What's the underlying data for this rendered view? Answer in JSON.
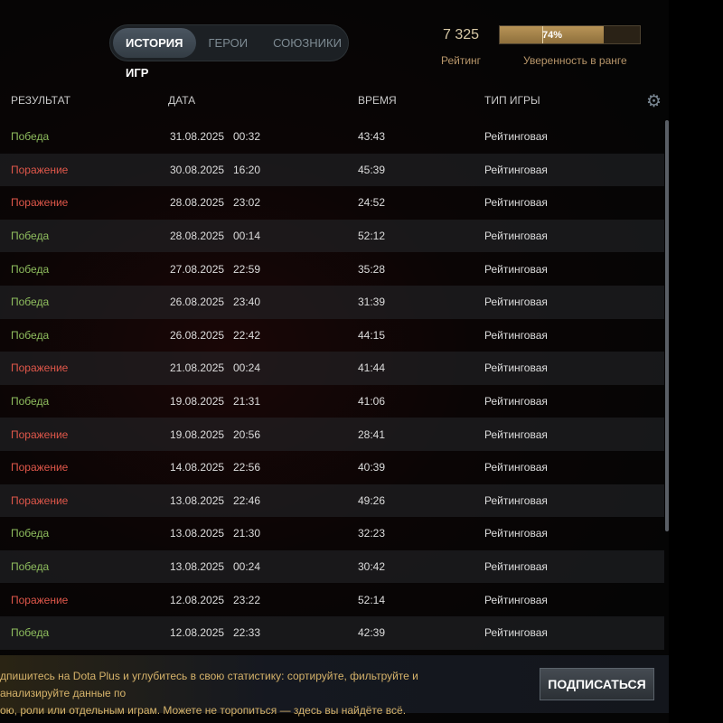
{
  "tabs": [
    {
      "label": "ИСТОРИЯ ИГР",
      "active": true
    },
    {
      "label": "ГЕРОИ"
    },
    {
      "label": "СОЮЗНИКИ"
    }
  ],
  "rating": {
    "value": "7 325",
    "label": "Рейтинг"
  },
  "confidence": {
    "percent": 74,
    "text": "74%",
    "label": "Уверенность в ранге"
  },
  "columns": {
    "result": "РЕЗУЛЬТАТ",
    "date": "ДАТА",
    "duration": "ВРЕМЯ",
    "type": "ТИП ИГРЫ"
  },
  "matches": [
    [
      "Победа",
      "31.08.2025",
      "00:32",
      "43:43",
      "Рейтинговая"
    ],
    [
      "Поражение",
      "30.08.2025",
      "16:20",
      "45:39",
      "Рейтинговая"
    ],
    [
      "Поражение",
      "28.08.2025",
      "23:02",
      "24:52",
      "Рейтинговая"
    ],
    [
      "Победа",
      "28.08.2025",
      "00:14",
      "52:12",
      "Рейтинговая"
    ],
    [
      "Победа",
      "27.08.2025",
      "22:59",
      "35:28",
      "Рейтинговая"
    ],
    [
      "Победа",
      "26.08.2025",
      "23:40",
      "31:39",
      "Рейтинговая"
    ],
    [
      "Победа",
      "26.08.2025",
      "22:42",
      "44:15",
      "Рейтинговая"
    ],
    [
      "Поражение",
      "21.08.2025",
      "00:24",
      "41:44",
      "Рейтинговая"
    ],
    [
      "Победа",
      "19.08.2025",
      "21:31",
      "41:06",
      "Рейтинговая"
    ],
    [
      "Поражение",
      "19.08.2025",
      "20:56",
      "28:41",
      "Рейтинговая"
    ],
    [
      "Поражение",
      "14.08.2025",
      "22:56",
      "40:39",
      "Рейтинговая"
    ],
    [
      "Поражение",
      "13.08.2025",
      "22:46",
      "49:26",
      "Рейтинговая"
    ],
    [
      "Победа",
      "13.08.2025",
      "21:30",
      "32:23",
      "Рейтинговая"
    ],
    [
      "Победа",
      "13.08.2025",
      "00:24",
      "30:42",
      "Рейтинговая"
    ],
    [
      "Поражение",
      "12.08.2025",
      "23:22",
      "52:14",
      "Рейтинговая"
    ],
    [
      "Победа",
      "12.08.2025",
      "22:33",
      "42:39",
      "Рейтинговая"
    ]
  ],
  "banner": {
    "line1": "дпишитесь на Dota Plus и углубитесь в свою статистику: сортируйте, фильтруйте и анализируйте данные по",
    "line2": "ою, роли или отдельным играм. Можете не торопиться — здесь вы найдёте всё.",
    "button": "ПОДПИСАТЬСЯ"
  },
  "colors": {
    "win": "#8fbe5e",
    "loss": "#e0574a",
    "accent": "#b89457"
  },
  "icons": {
    "settings": "gear-icon"
  }
}
